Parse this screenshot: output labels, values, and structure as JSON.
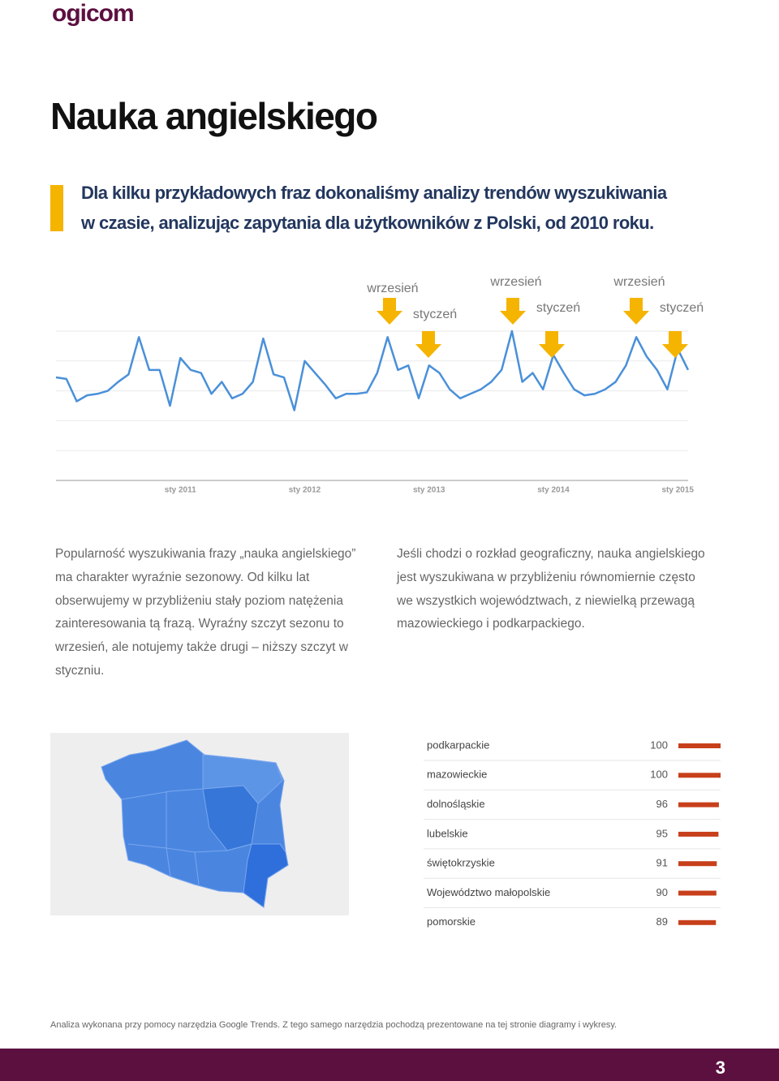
{
  "header": {
    "logo": "ogicom",
    "title": "Nauka angielskiego",
    "lead": [
      "Dla kilku przykładowych fraz dokonaliśmy analizy trendów wyszukiwania",
      "w czasie, analizując zapytania dla użytkowników z Polski, od 2010 roku."
    ]
  },
  "chart_data": [
    {
      "type": "line",
      "color": "#4a90d9",
      "annotations": [
        "wrzesień",
        "styczeń",
        "wrzesień",
        "styczeń",
        "wrzesień",
        "styczeń"
      ],
      "categories": [
        null,
        null,
        null,
        null,
        null,
        null,
        null,
        null,
        null,
        null,
        null,
        null,
        "sty 2011",
        null,
        null,
        null,
        null,
        null,
        null,
        null,
        null,
        null,
        null,
        null,
        "sty 2012",
        null,
        null,
        null,
        null,
        null,
        null,
        null,
        null,
        null,
        null,
        null,
        "sty 2013",
        null,
        null,
        null,
        null,
        null,
        null,
        null,
        null,
        null,
        null,
        null,
        "sty 2014",
        null,
        null,
        null,
        null,
        null,
        null,
        null,
        null,
        null,
        null,
        null,
        "sty 2015",
        null
      ],
      "values": [
        69,
        68,
        53,
        57,
        58,
        60,
        66,
        71,
        96,
        74,
        74,
        50,
        82,
        74,
        72,
        58,
        66,
        55,
        58,
        66,
        95,
        71,
        69,
        47,
        80,
        72,
        64,
        55,
        58,
        58,
        59,
        72,
        96,
        74,
        77,
        55,
        77,
        72,
        61,
        55,
        58,
        61,
        66,
        74,
        100,
        66,
        72,
        61,
        84,
        72,
        61,
        57,
        58,
        61,
        66,
        77,
        96,
        83,
        74,
        61,
        88,
        74
      ],
      "ylim": [
        0,
        100
      ],
      "yticks": [
        0,
        20,
        40,
        60,
        80,
        100
      ],
      "grid": true
    },
    {
      "type": "bar",
      "orientation": "horizontal",
      "color": "#c7401b",
      "categories": [
        "podkarpackie",
        "mazowieckie",
        "dolnośląskie",
        "lubelskie",
        "świętokrzyskie",
        "Województwo małopolskie",
        "pomorskie"
      ],
      "values": [
        100,
        100,
        96,
        95,
        91,
        90,
        89
      ],
      "xlim": [
        0,
        100
      ]
    }
  ],
  "text": {
    "left": [
      "Popularność wyszukiwania frazy „nauka angielskiego”",
      "ma charakter wyraźnie sezonowy. Od kilku lat",
      "obserwujemy w przybliżeniu stały poziom natężenia",
      "zainteresowania tą frazą. Wyraźny szczyt sezonu to",
      "wrzesień, ale notujemy także drugi – niższy szczyt w",
      "styczniu."
    ],
    "right": [
      "Jeśli chodzi o rozkład geograficzny, nauka angielskiego",
      "jest wyszukiwana w przybliżeniu równomiernie często",
      "we wszystkich województwach, z niewielką przewagą",
      "mazowieckiego i podkarpackiego."
    ]
  },
  "footer": {
    "note": "Analiza wykonana przy pomocy narzędzia Google Trends. Z tego samego narzędzia pochodzą prezentowane na tej stronie diagramy i wykresy.",
    "page": "3"
  }
}
